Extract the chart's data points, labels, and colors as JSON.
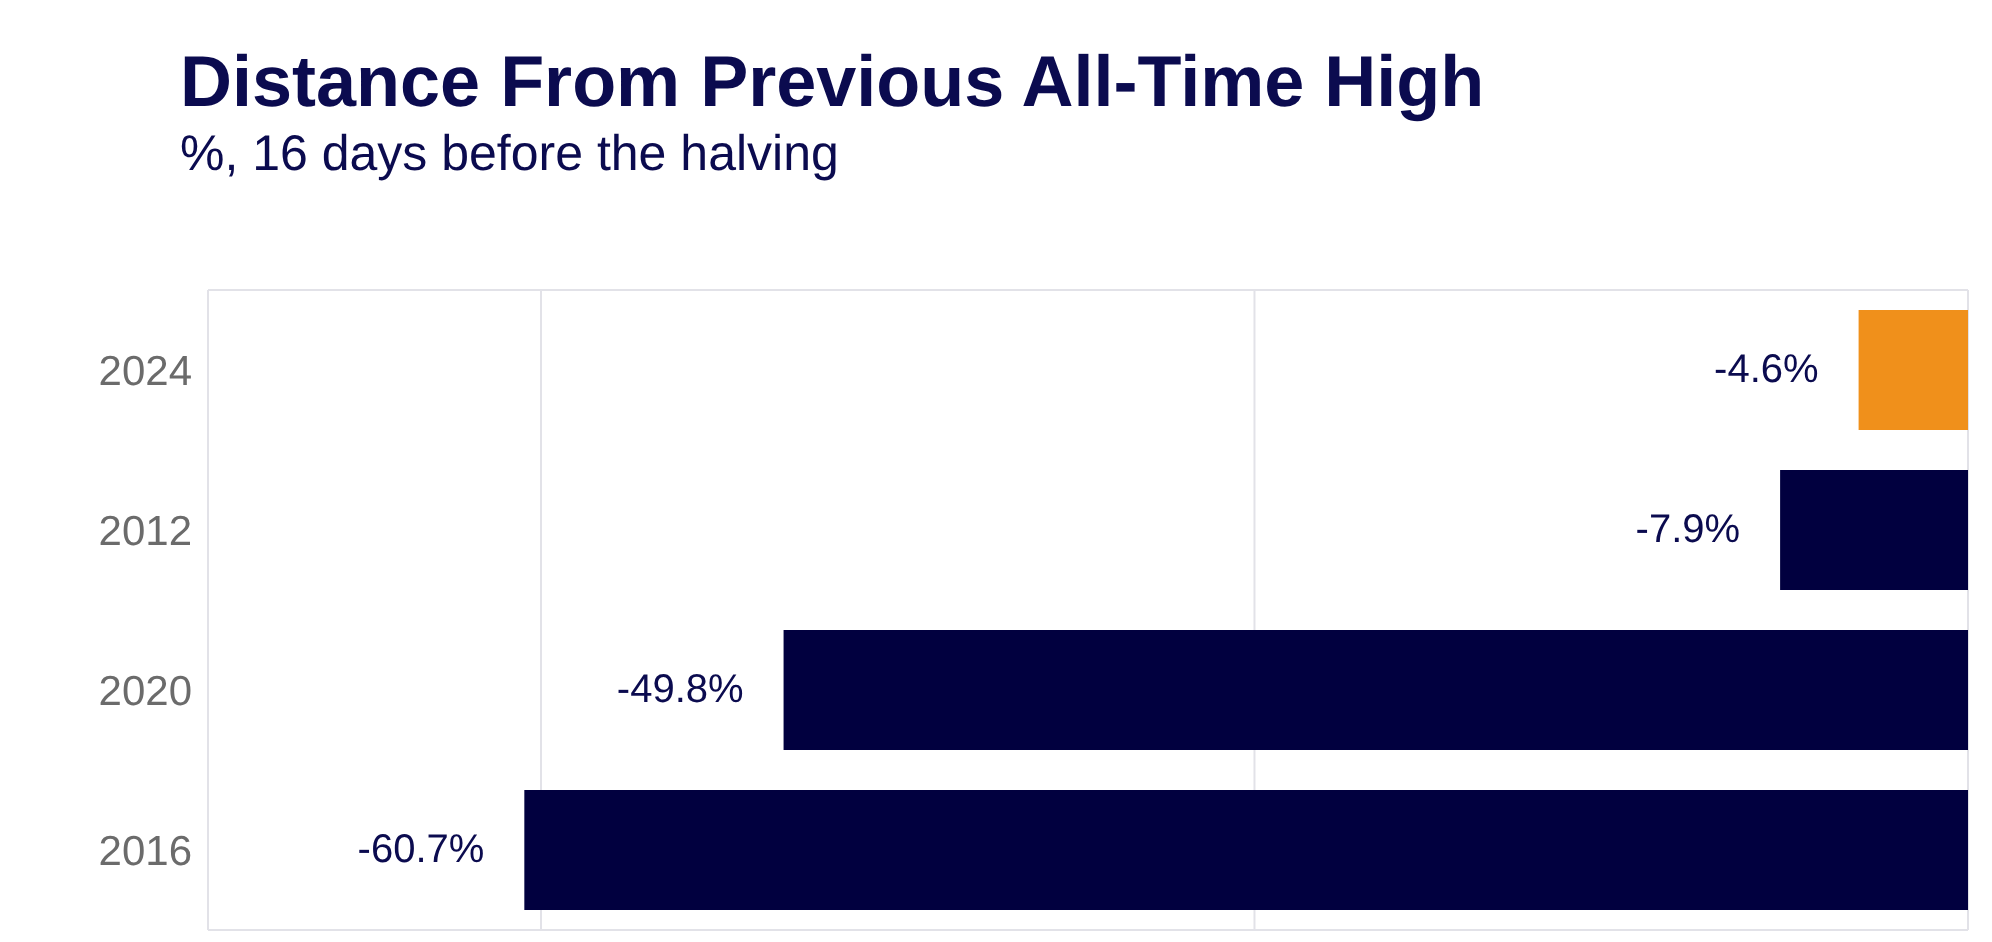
{
  "chart_data": {
    "type": "bar",
    "orientation": "horizontal",
    "title": "Distance From Previous All-Time High",
    "subtitle": "%, 16 days before the halving",
    "categories": [
      "2024",
      "2012",
      "2020",
      "2016"
    ],
    "values": [
      -4.6,
      -7.9,
      -49.8,
      -60.7
    ],
    "colors": [
      "#f0901b",
      "#01003f",
      "#01003f",
      "#01003f"
    ],
    "value_labels": [
      "-4.6%",
      "-7.9%",
      "-49.8%",
      "-60.7%"
    ],
    "xlim": [
      -74,
      0
    ],
    "xticks": [
      {
        "value": -60,
        "label": null
      },
      {
        "value": -30,
        "label": null
      },
      {
        "value": 0,
        "label": null
      }
    ],
    "grid": "x",
    "tick_labels": "y"
  }
}
